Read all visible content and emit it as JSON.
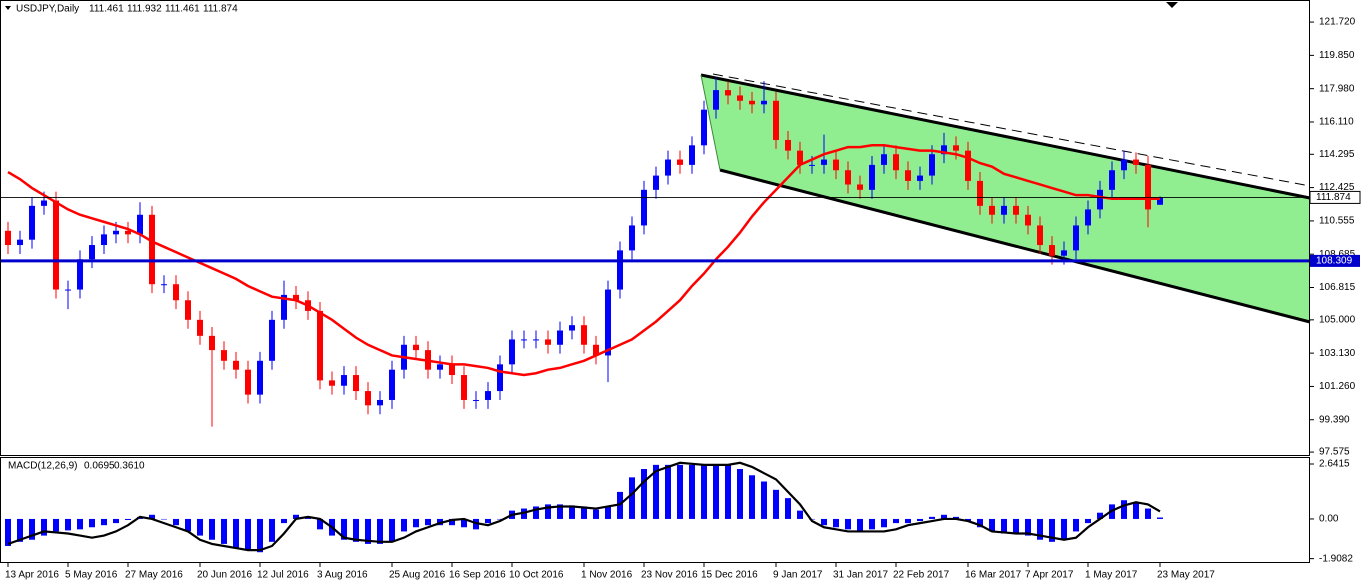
{
  "chart_data": [
    {
      "type": "candlestick",
      "title": "USDJPY,Daily",
      "categories": [
        "13 Apr 2016",
        null,
        null,
        null,
        null,
        "5 May 2016",
        null,
        null,
        null,
        null,
        "27 May 2016",
        null,
        null,
        null,
        null,
        null,
        "20 Jun 2016",
        null,
        null,
        null,
        null,
        "12 Jul 2016",
        null,
        null,
        null,
        null,
        "3 Aug 2016",
        null,
        null,
        null,
        null,
        null,
        "25 Aug 2016",
        null,
        null,
        null,
        null,
        "16 Sep 2016",
        null,
        null,
        null,
        null,
        "10 Oct 2016",
        null,
        null,
        null,
        null,
        null,
        "1 Nov 2016",
        null,
        null,
        null,
        null,
        "23 Nov 2016",
        null,
        null,
        null,
        null,
        "15 Dec 2016",
        null,
        null,
        null,
        null,
        null,
        "9 Jan 2017",
        null,
        null,
        null,
        null,
        "31 Jan 2017",
        null,
        null,
        null,
        null,
        "22 Feb 2017",
        null,
        null,
        null,
        null,
        null,
        "16 Mar 2017",
        null,
        null,
        null,
        null,
        "7 Apr 2017",
        null,
        null,
        null,
        null,
        "1 May 2017",
        null,
        null,
        null,
        null,
        null,
        "23 May 2017"
      ],
      "open": [
        110.0,
        109.2,
        109.5,
        111.4,
        111.7,
        106.7,
        106.7,
        108.4,
        109.2,
        109.8,
        110.0,
        109.8,
        110.9,
        107.0,
        107.0,
        106.1,
        105.0,
        104.1,
        103.3,
        102.7,
        102.2,
        100.8,
        102.7,
        105.0,
        106.4,
        106.1,
        105.5,
        101.6,
        101.3,
        101.9,
        101.0,
        100.2,
        100.5,
        102.2,
        103.6,
        103.3,
        102.2,
        102.5,
        101.9,
        100.5,
        100.5,
        101.0,
        102.5,
        103.9,
        103.9,
        103.9,
        103.6,
        104.4,
        104.7,
        103.6,
        103.0,
        106.7,
        108.9,
        110.3,
        112.3,
        113.1,
        114.0,
        113.7,
        114.8,
        116.8,
        117.9,
        117.6,
        117.3,
        117.1,
        117.3,
        115.1,
        114.5,
        113.7,
        113.7,
        114.0,
        113.4,
        112.6,
        112.3,
        113.7,
        114.3,
        113.4,
        112.8,
        113.1,
        114.3,
        114.8,
        114.5,
        112.8,
        111.4,
        110.9,
        111.4,
        110.9,
        110.3,
        109.2,
        108.6,
        108.9,
        110.3,
        111.2,
        112.3,
        113.4,
        114.0,
        113.7,
        111.461
      ],
      "high": [
        110.5,
        110.0,
        111.9,
        112.2,
        112.2,
        107.2,
        108.9,
        109.7,
        110.3,
        110.5,
        110.5,
        111.6,
        111.4,
        107.5,
        107.5,
        106.6,
        105.5,
        104.6,
        103.8,
        103.2,
        102.7,
        103.2,
        105.5,
        107.2,
        106.9,
        106.6,
        106.0,
        102.1,
        102.4,
        102.4,
        101.5,
        101.0,
        102.7,
        104.1,
        104.1,
        103.8,
        103.0,
        103.0,
        102.4,
        101.0,
        101.5,
        103.0,
        104.4,
        104.4,
        104.4,
        104.4,
        104.9,
        105.2,
        105.2,
        104.1,
        107.2,
        109.4,
        110.8,
        112.8,
        113.6,
        114.5,
        114.5,
        115.3,
        117.3,
        118.6,
        118.4,
        118.1,
        117.8,
        118.4,
        117.8,
        115.6,
        115.0,
        114.2,
        115.4,
        114.5,
        113.9,
        113.1,
        114.2,
        114.8,
        114.8,
        113.9,
        113.6,
        114.8,
        115.5,
        115.3,
        115.0,
        113.3,
        111.9,
        111.9,
        111.9,
        111.4,
        110.8,
        109.7,
        109.4,
        110.8,
        111.7,
        112.8,
        113.9,
        114.5,
        114.4,
        114.2,
        111.932
      ],
      "low": [
        108.7,
        108.7,
        109.0,
        110.9,
        106.2,
        105.6,
        106.2,
        107.9,
        108.7,
        109.3,
        109.3,
        109.3,
        106.5,
        106.5,
        105.6,
        104.5,
        103.6,
        99.0,
        102.2,
        101.7,
        100.3,
        100.3,
        102.2,
        104.5,
        105.6,
        105.0,
        101.1,
        100.8,
        100.8,
        100.5,
        99.7,
        99.7,
        100.0,
        101.7,
        102.8,
        101.7,
        101.7,
        101.4,
        100.0,
        100.0,
        100.0,
        100.5,
        102.0,
        103.4,
        103.4,
        103.1,
        103.1,
        103.9,
        103.1,
        102.5,
        101.5,
        106.2,
        108.4,
        109.8,
        111.8,
        112.6,
        113.2,
        113.2,
        114.3,
        116.3,
        117.1,
        116.8,
        116.6,
        116.6,
        114.6,
        114.0,
        113.2,
        113.2,
        113.2,
        112.9,
        112.1,
        111.8,
        111.8,
        113.2,
        112.9,
        112.3,
        112.3,
        112.6,
        113.8,
        114.0,
        112.3,
        110.9,
        110.4,
        110.4,
        110.4,
        109.8,
        108.7,
        108.1,
        108.1,
        108.4,
        109.8,
        110.7,
        111.8,
        112.9,
        113.2,
        110.2,
        111.461
      ],
      "close": [
        109.2,
        109.5,
        111.4,
        111.7,
        106.7,
        106.7,
        108.4,
        109.2,
        109.8,
        110.0,
        109.8,
        110.9,
        107.0,
        107.0,
        106.1,
        105.0,
        104.1,
        103.3,
        102.7,
        102.2,
        100.8,
        102.7,
        105.0,
        106.4,
        106.1,
        105.5,
        101.6,
        101.3,
        101.9,
        101.0,
        100.2,
        100.5,
        102.2,
        103.6,
        103.3,
        102.2,
        102.5,
        101.9,
        100.5,
        100.5,
        101.0,
        102.5,
        103.9,
        103.9,
        103.9,
        103.6,
        104.4,
        104.7,
        103.6,
        103.0,
        106.7,
        108.9,
        110.3,
        112.3,
        113.1,
        114.0,
        113.7,
        114.8,
        116.8,
        117.9,
        117.6,
        117.3,
        117.1,
        117.3,
        115.1,
        114.5,
        113.7,
        113.7,
        114.0,
        113.4,
        112.6,
        112.3,
        113.7,
        114.3,
        113.4,
        112.8,
        113.1,
        114.3,
        114.8,
        114.5,
        112.8,
        111.4,
        110.9,
        111.4,
        110.9,
        110.3,
        109.2,
        108.6,
        108.9,
        110.3,
        111.2,
        112.3,
        113.4,
        114.0,
        113.7,
        111.2,
        111.874
      ],
      "up_color": "#0000ff",
      "down_color": "#ff0000",
      "ma": {
        "color": "#ff0000",
        "values": [
          113.3,
          112.9,
          112.4,
          112.0,
          111.6,
          111.2,
          110.9,
          110.7,
          110.5,
          110.3,
          110.1,
          109.8,
          109.4,
          109.1,
          108.8,
          108.5,
          108.2,
          107.9,
          107.6,
          107.3,
          106.9,
          106.6,
          106.3,
          106.2,
          106.1,
          105.8,
          105.4,
          105.0,
          104.5,
          104.0,
          103.6,
          103.3,
          103.0,
          102.9,
          102.8,
          102.7,
          102.6,
          102.5,
          102.5,
          102.4,
          102.3,
          102.1,
          102.0,
          101.9,
          102.0,
          102.2,
          102.3,
          102.5,
          102.7,
          103.0,
          103.3,
          103.6,
          103.9,
          104.4,
          104.9,
          105.5,
          106.1,
          106.9,
          107.6,
          108.4,
          109.1,
          109.9,
          110.8,
          111.6,
          112.3,
          113.0,
          113.7,
          114.0,
          114.3,
          114.5,
          114.7,
          114.7,
          114.8,
          114.8,
          114.7,
          114.6,
          114.5,
          114.5,
          114.4,
          114.3,
          114.1,
          113.8,
          113.6,
          113.2,
          113.0,
          112.8,
          112.6,
          112.4,
          112.2,
          112.0,
          112.0,
          111.9,
          111.8,
          111.8,
          111.8,
          111.8,
          111.8
        ]
      },
      "hlines": [
        {
          "value": 108.309,
          "color": "#0000cc"
        }
      ],
      "ylim": [
        97.41,
        122.51
      ],
      "yticks": [
        {
          "value": 121.72,
          "label": "121.720"
        },
        {
          "value": 119.85,
          "label": "119.850"
        },
        {
          "value": 117.98,
          "label": "117.980"
        },
        {
          "value": 116.11,
          "label": "116.110"
        },
        {
          "value": 114.295,
          "label": "114.295"
        },
        {
          "value": 112.425,
          "label": "112.425"
        },
        {
          "value": 110.555,
          "label": "110.555"
        },
        {
          "value": 108.685,
          "label": "108.685"
        },
        {
          "value": 106.815,
          "label": "106.815"
        },
        {
          "value": 105.0,
          "label": "105.000"
        },
        {
          "value": 103.13,
          "label": "103.130"
        },
        {
          "value": 101.26,
          "label": "101.260"
        },
        {
          "value": 99.39,
          "label": "99.390"
        },
        {
          "value": 97.575,
          "label": "97.575"
        }
      ]
    },
    {
      "type": "macd",
      "title": "MACD(12,26,9)",
      "histogram": {
        "color": "#0000ff",
        "values": [
          -1.3,
          -1.1,
          -1.0,
          -0.8,
          -0.6,
          -0.55,
          -0.5,
          -0.4,
          -0.3,
          -0.2,
          -0.05,
          0.1,
          0.2,
          0.0,
          -0.3,
          -0.6,
          -0.8,
          -1.0,
          -1.2,
          -1.4,
          -1.5,
          -1.6,
          -1.1,
          -0.2,
          0.2,
          0.1,
          -0.5,
          -0.8,
          -1.0,
          -1.1,
          -1.2,
          -1.2,
          -1.1,
          -0.6,
          -0.4,
          -0.3,
          -0.3,
          -0.3,
          -0.4,
          -0.5,
          -0.2,
          0.0,
          0.4,
          0.5,
          0.6,
          0.7,
          0.7,
          0.65,
          0.6,
          0.45,
          0.6,
          1.3,
          2.0,
          2.4,
          2.6,
          2.6,
          2.6,
          2.6,
          2.6,
          2.6,
          2.6,
          2.4,
          2.1,
          1.8,
          1.4,
          1.0,
          0.4,
          0.0,
          -0.3,
          -0.4,
          -0.5,
          -0.6,
          -0.5,
          -0.4,
          -0.2,
          -0.2,
          -0.1,
          0.1,
          0.2,
          0.1,
          -0.1,
          -0.4,
          -0.6,
          -0.7,
          -0.7,
          -0.8,
          -1.0,
          -1.1,
          -1.0,
          -0.6,
          -0.2,
          0.3,
          0.7,
          0.9,
          0.8,
          0.5,
          0.0695
        ]
      },
      "signal": {
        "color": "#000000",
        "values": [
          -1.2,
          -1.0,
          -0.8,
          -0.6,
          -0.65,
          -0.7,
          -0.8,
          -0.9,
          -0.8,
          -0.6,
          -0.3,
          0.1,
          0.0,
          -0.2,
          -0.4,
          -0.6,
          -1.0,
          -1.2,
          -1.3,
          -1.4,
          -1.5,
          -1.5,
          -1.3,
          -0.7,
          0.0,
          0.1,
          0.0,
          -0.4,
          -0.9,
          -1.0,
          -1.05,
          -1.1,
          -1.1,
          -0.9,
          -0.6,
          -0.4,
          -0.2,
          -0.05,
          0.0,
          -0.2,
          -0.3,
          -0.1,
          0.2,
          0.3,
          0.45,
          0.55,
          0.6,
          0.6,
          0.55,
          0.5,
          0.6,
          0.7,
          1.2,
          1.8,
          2.3,
          2.5,
          2.7,
          2.65,
          2.6,
          2.6,
          2.6,
          2.7,
          2.5,
          2.2,
          1.9,
          1.3,
          0.7,
          -0.1,
          -0.4,
          -0.5,
          -0.6,
          -0.6,
          -0.6,
          -0.6,
          -0.5,
          -0.3,
          -0.2,
          -0.1,
          0.0,
          0.0,
          -0.1,
          -0.3,
          -0.6,
          -0.65,
          -0.7,
          -0.7,
          -0.8,
          -0.9,
          -1.0,
          -0.9,
          -0.4,
          0.0,
          0.4,
          0.65,
          0.8,
          0.7,
          0.361
        ],
        "value_labels": {
          "96": "0.3610"
        }
      },
      "ylim": [
        -2.07,
        2.93
      ],
      "yticks": [
        {
          "value": 2.6415,
          "label": "2.6415"
        },
        {
          "value": 0,
          "label": "0.00"
        },
        {
          "value": -1.9082,
          "label": "-1.9082"
        }
      ]
    }
  ]
}
